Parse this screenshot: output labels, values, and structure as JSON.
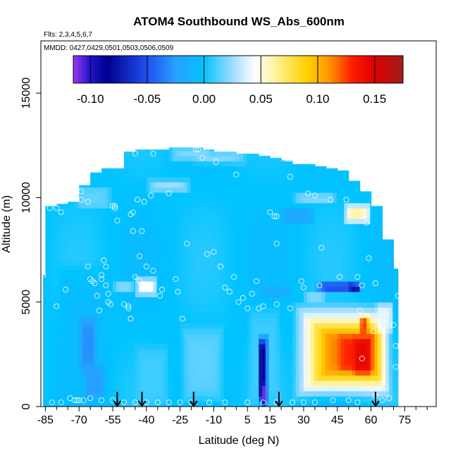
{
  "chart_data": {
    "type": "heatmap",
    "title": "ATOM4 Southbound WS_Abs_600nm",
    "flights_note": "Flts: 2,3,4,5,6,7",
    "dates_note": "MMDD: 0427,0429,0501,0503,0506,0509",
    "xlabel": "Latitude (deg N)",
    "ylabel": "Altitude (m)",
    "xlim": [
      -87,
      89
    ],
    "ylim": [
      0,
      17500
    ],
    "xticks": [
      -85,
      -70,
      -55,
      -40,
      -25,
      -10,
      5,
      15,
      30,
      45,
      60,
      75
    ],
    "xtick_labels": [
      "-85",
      "-70",
      "-55",
      "-40",
      "-25",
      "-10",
      "5",
      "15",
      "30",
      "45",
      "60",
      "75"
    ],
    "yticks": [
      0,
      5000,
      10000,
      15000
    ],
    "ytick_labels": [
      "0",
      "5000",
      "10000",
      "15000"
    ],
    "colorbar": {
      "range": [
        -0.115,
        0.175
      ],
      "ticks": [
        -0.1,
        -0.05,
        0.0,
        0.05,
        0.1,
        0.15
      ],
      "tick_labels": [
        "-0.10",
        "-0.05",
        "0.00",
        "0.05",
        "0.10",
        "0.15"
      ],
      "stops": [
        {
          "v": -0.115,
          "c": "#9a38f0"
        },
        {
          "v": -0.1,
          "c": "#1e14c8"
        },
        {
          "v": -0.085,
          "c": "#00008c"
        },
        {
          "v": -0.05,
          "c": "#1e50f0"
        },
        {
          "v": -0.025,
          "c": "#28a0ff"
        },
        {
          "v": 0.0,
          "c": "#00c3ff"
        },
        {
          "v": 0.025,
          "c": "#a0dcff"
        },
        {
          "v": 0.045,
          "c": "#ffffff"
        },
        {
          "v": 0.065,
          "c": "#fff08c"
        },
        {
          "v": 0.09,
          "c": "#ffd200"
        },
        {
          "v": 0.11,
          "c": "#ff9600"
        },
        {
          "v": 0.13,
          "c": "#ff1e00"
        },
        {
          "v": 0.15,
          "c": "#dc0000"
        },
        {
          "v": 0.175,
          "c": "#a01e1e"
        }
      ]
    },
    "background_value": 0.0,
    "coverage": {
      "lat_edges": [
        -86,
        -85,
        -80,
        -75,
        -70,
        -65,
        -60,
        -55,
        -50,
        -45,
        -40,
        -35,
        -30,
        -25,
        -20,
        -15,
        -10,
        -5,
        0,
        5,
        10,
        15,
        20,
        25,
        30,
        35,
        40,
        45,
        50,
        55,
        60,
        65,
        70,
        72
      ],
      "top_alt": [
        6300,
        9600,
        9700,
        9800,
        10600,
        11200,
        11400,
        11400,
        12200,
        12300,
        12300,
        12300,
        12400,
        12400,
        12400,
        12300,
        12200,
        12200,
        12100,
        12100,
        12000,
        11900,
        11800,
        11600,
        11600,
        11500,
        11400,
        11300,
        10800,
        10300,
        9600,
        8000,
        6600
      ]
    },
    "features": [
      {
        "lat": [
          -80,
          -55
        ],
        "alt": [
          0,
          7000
        ],
        "value": -0.005
      },
      {
        "lat": [
          -70,
          -62
        ],
        "alt": [
          1500,
          4500
        ],
        "value": -0.03
      },
      {
        "lat": [
          -68,
          -58
        ],
        "alt": [
          300,
          2000
        ],
        "value": -0.025
      },
      {
        "lat": [
          -45,
          -35
        ],
        "alt": [
          5300,
          6200
        ],
        "value": 0.045
      },
      {
        "lat": [
          -55,
          -45
        ],
        "alt": [
          5400,
          6100
        ],
        "value": 0.02
      },
      {
        "lat": [
          -40,
          -20
        ],
        "alt": [
          10300,
          10900
        ],
        "value": 0.025
      },
      {
        "lat": [
          -30,
          -10
        ],
        "alt": [
          11800,
          12400
        ],
        "value": 0.02
      },
      {
        "lat": [
          20,
          35
        ],
        "alt": [
          11700,
          12300
        ],
        "value": 0.045
      },
      {
        "lat": [
          -20,
          5
        ],
        "alt": [
          11600,
          12200
        ],
        "value": 0.02
      },
      {
        "lat": [
          -72,
          -55
        ],
        "alt": [
          9400,
          10600
        ],
        "value": 0.015
      },
      {
        "lat": [
          20,
          35
        ],
        "alt": [
          8700,
          9600
        ],
        "value": -0.02
      },
      {
        "lat": [
          25,
          45
        ],
        "alt": [
          9700,
          10200
        ],
        "value": 0.02
      },
      {
        "lat": [
          48,
          60
        ],
        "alt": [
          8800,
          9700
        ],
        "value": 0.06
      },
      {
        "lat": [
          35,
          55
        ],
        "alt": [
          5400,
          6000
        ],
        "value": -0.05
      },
      {
        "lat": [
          50,
          56
        ],
        "alt": [
          5500,
          5900
        ],
        "value": -0.075
      },
      {
        "lat": [
          10,
          25
        ],
        "alt": [
          5200,
          5900
        ],
        "value": -0.015
      },
      {
        "lat": [
          30,
          40
        ],
        "alt": [
          4900,
          5600
        ],
        "value": 0.02
      },
      {
        "lat": [
          5,
          20
        ],
        "alt": [
          0,
          5000
        ],
        "value": 0.01
      },
      {
        "lat": [
          10,
          14
        ],
        "alt": [
          0,
          3500
        ],
        "value": -0.09
      },
      {
        "lat": [
          11,
          13
        ],
        "alt": [
          0,
          1200
        ],
        "value": -0.11
      },
      {
        "lat": [
          -25,
          -5
        ],
        "alt": [
          0,
          4000
        ],
        "value": 0.015
      },
      {
        "lat": [
          -45,
          -30
        ],
        "alt": [
          0,
          3000
        ],
        "value": 0.01
      },
      {
        "lat": [
          25,
          70
        ],
        "alt": [
          300,
          5000
        ],
        "value": 0.05
      },
      {
        "lat": [
          30,
          68
        ],
        "alt": [
          800,
          4400
        ],
        "value": 0.075
      },
      {
        "lat": [
          34,
          66
        ],
        "alt": [
          1100,
          4000
        ],
        "value": 0.095
      },
      {
        "lat": [
          38,
          64
        ],
        "alt": [
          1500,
          3700
        ],
        "value": 0.115
      },
      {
        "lat": [
          45,
          62
        ],
        "alt": [
          1600,
          3500
        ],
        "value": 0.13
      },
      {
        "lat": [
          52,
          60
        ],
        "alt": [
          1500,
          3400
        ],
        "value": 0.145
      },
      {
        "lat": [
          55,
          59
        ],
        "alt": [
          3400,
          4400
        ],
        "value": 0.125
      },
      {
        "lat": [
          62,
          70
        ],
        "alt": [
          3500,
          5000
        ],
        "value": 0.04
      }
    ],
    "arrows_lat": [
      -53,
      -42,
      -19,
      19,
      62
    ],
    "observations": [
      [
        -86,
        6300
      ],
      [
        -83,
        9500
      ],
      [
        -80,
        9500
      ],
      [
        -78,
        9300
      ],
      [
        -80,
        4800
      ],
      [
        -76,
        5600
      ],
      [
        -74,
        400
      ],
      [
        -71,
        300
      ],
      [
        -70,
        300
      ],
      [
        -69,
        10300
      ],
      [
        -69,
        9900
      ],
      [
        -66,
        9800
      ],
      [
        -66,
        6700
      ],
      [
        -65,
        6100
      ],
      [
        -64,
        6000
      ],
      [
        -63,
        5900
      ],
      [
        -62,
        5300
      ],
      [
        -61,
        4600
      ],
      [
        -60,
        6300
      ],
      [
        -60,
        6100
      ],
      [
        -59,
        7000
      ],
      [
        -58,
        6700
      ],
      [
        -58,
        5800
      ],
      [
        -57,
        5400
      ],
      [
        -57,
        5000
      ],
      [
        -56,
        4900
      ],
      [
        -55,
        9600
      ],
      [
        -54,
        9500
      ],
      [
        -54,
        9600
      ],
      [
        -53,
        11700
      ],
      [
        -53,
        8900
      ],
      [
        -50,
        4900
      ],
      [
        -48,
        4800
      ],
      [
        -48,
        4700
      ],
      [
        -47,
        4200
      ],
      [
        -47,
        9200
      ],
      [
        -46,
        9300
      ],
      [
        -46,
        8400
      ],
      [
        -45,
        6200
      ],
      [
        -45,
        12100
      ],
      [
        -44,
        9900
      ],
      [
        -43,
        7200
      ],
      [
        -43,
        6000
      ],
      [
        -42,
        8400
      ],
      [
        -41,
        9800
      ],
      [
        -40,
        6700
      ],
      [
        -38,
        10100
      ],
      [
        -37,
        12100
      ],
      [
        -37,
        6500
      ],
      [
        -34,
        5300
      ],
      [
        -33,
        5600
      ],
      [
        -30,
        10200
      ],
      [
        -27,
        6100
      ],
      [
        -26,
        5500
      ],
      [
        -24,
        4200
      ],
      [
        -22,
        7800
      ],
      [
        -18,
        12300
      ],
      [
        -17,
        12300
      ],
      [
        -15,
        11900
      ],
      [
        -13,
        7300
      ],
      [
        -10,
        7400
      ],
      [
        -9,
        11700
      ],
      [
        -7,
        6700
      ],
      [
        -5,
        5700
      ],
      [
        -3,
        5500
      ],
      [
        -1,
        6200
      ],
      [
        0,
        11100
      ],
      [
        1,
        5000
      ],
      [
        3,
        5200
      ],
      [
        5,
        4700
      ],
      [
        7,
        5400
      ],
      [
        9,
        6000
      ],
      [
        10,
        4700
      ],
      [
        12,
        4800
      ],
      [
        15,
        9300
      ],
      [
        17,
        9100
      ],
      [
        18,
        9100
      ],
      [
        18,
        4900
      ],
      [
        18,
        7800
      ],
      [
        24,
        11000
      ],
      [
        24,
        4700
      ],
      [
        29,
        6000
      ],
      [
        30,
        5700
      ],
      [
        32,
        10200
      ],
      [
        35,
        10100
      ],
      [
        37,
        5800
      ],
      [
        38,
        7600
      ],
      [
        42,
        9900
      ],
      [
        46,
        6200
      ],
      [
        49,
        9900
      ],
      [
        54,
        6200
      ],
      [
        55,
        4600
      ],
      [
        56,
        9100
      ],
      [
        58,
        8800
      ],
      [
        59,
        7100
      ],
      [
        61,
        3600
      ],
      [
        62,
        5900
      ],
      [
        62,
        500
      ],
      [
        56,
        2300
      ],
      [
        56,
        5800
      ],
      [
        70,
        3900
      ],
      [
        71,
        2900
      ],
      [
        71,
        1900
      ],
      [
        72,
        5300
      ],
      [
        54,
        200
      ],
      [
        50,
        300
      ],
      [
        43,
        300
      ],
      [
        35,
        200
      ],
      [
        30,
        200
      ],
      [
        25,
        200
      ],
      [
        18,
        200
      ],
      [
        12,
        200
      ],
      [
        5,
        200
      ],
      [
        -5,
        200
      ],
      [
        -12,
        200
      ],
      [
        -20,
        200
      ],
      [
        -25,
        200
      ],
      [
        -30,
        200
      ],
      [
        -35,
        200
      ],
      [
        -40,
        200
      ],
      [
        -45,
        200
      ],
      [
        -50,
        200
      ],
      [
        -55,
        300
      ],
      [
        -60,
        300
      ],
      [
        -65,
        400
      ],
      [
        -68,
        300
      ],
      [
        -72,
        300
      ],
      [
        -78,
        200
      ],
      [
        -82,
        200
      ],
      [
        65,
        300
      ],
      [
        68,
        400
      ]
    ]
  }
}
